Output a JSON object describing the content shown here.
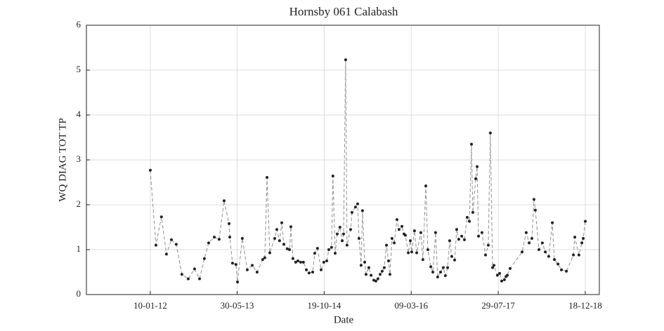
{
  "chart_data": {
    "type": "line",
    "title": "Hornsby 061 Calabash",
    "x_label": "Date",
    "y_label": "WQ DIAG TOT TP",
    "color": "#999999",
    "marker_color": "#222222",
    "line_style": "dashed",
    "grid": true,
    "xlim": [
      "2011-01-03",
      "2019-03-10"
    ],
    "xticks": [
      {
        "value": "2012-01-10",
        "label": "10-01-12"
      },
      {
        "value": "2013-05-30",
        "label": "30-05-13"
      },
      {
        "value": "2014-10-19",
        "label": "19-10-14"
      },
      {
        "value": "2016-03-09",
        "label": "09-03-16"
      },
      {
        "value": "2017-07-29",
        "label": "29-07-17"
      },
      {
        "value": "2018-12-18",
        "label": "18-12-18"
      }
    ],
    "ylim": [
      0,
      6
    ],
    "yticks": [
      0,
      1,
      2,
      3,
      4,
      5,
      6
    ],
    "x": [
      "2012-01-10",
      "2012-02-12",
      "2012-03-15",
      "2012-04-13",
      "2012-05-12",
      "2012-06-09",
      "2012-07-12",
      "2012-08-18",
      "2012-09-24",
      "2012-10-23",
      "2012-11-20",
      "2012-12-15",
      "2013-01-17",
      "2013-02-14",
      "2013-03-15",
      "2013-04-13",
      "2013-04-17",
      "2013-05-03",
      "2013-05-23",
      "2013-06-01",
      "2013-06-29",
      "2013-07-28",
      "2013-08-26",
      "2013-09-23",
      "2013-10-26",
      "2013-11-07",
      "2013-11-20",
      "2013-12-06",
      "2014-01-04",
      "2014-01-16",
      "2014-02-01",
      "2014-02-14",
      "2014-02-26",
      "2014-03-18",
      "2014-03-31",
      "2014-04-08",
      "2014-04-20",
      "2014-05-06",
      "2014-05-19",
      "2014-06-04",
      "2014-06-20",
      "2014-07-07",
      "2014-07-23",
      "2014-08-13",
      "2014-08-25",
      "2014-09-10",
      "2014-10-01",
      "2014-10-17",
      "2014-11-03",
      "2014-11-15",
      "2014-12-01",
      "2014-12-09",
      "2014-12-22",
      "2015-01-03",
      "2015-01-19",
      "2015-02-01",
      "2015-02-09",
      "2015-02-21",
      "2015-03-01",
      "2015-03-22",
      "2015-03-30",
      "2015-04-19",
      "2015-05-02",
      "2015-05-10",
      "2015-05-22",
      "2015-05-30",
      "2015-06-12",
      "2015-06-20",
      "2015-07-06",
      "2015-07-19",
      "2015-08-04",
      "2015-08-16",
      "2015-08-28",
      "2015-09-10",
      "2015-09-22",
      "2015-10-04",
      "2015-10-17",
      "2015-10-29",
      "2015-11-06",
      "2015-11-18",
      "2015-12-01",
      "2015-12-17",
      "2015-12-29",
      "2016-01-15",
      "2016-01-27",
      "2016-02-04",
      "2016-02-21",
      "2016-03-04",
      "2016-03-12",
      "2016-03-28",
      "2016-04-10",
      "2016-05-04",
      "2016-05-16",
      "2016-06-02",
      "2016-06-14",
      "2016-07-01",
      "2016-07-13",
      "2016-07-29",
      "2016-08-10",
      "2016-08-27",
      "2016-09-12",
      "2016-09-24",
      "2016-10-07",
      "2016-10-19",
      "2016-10-31",
      "2016-11-17",
      "2016-11-29",
      "2016-12-11",
      "2016-12-28",
      "2017-01-13",
      "2017-01-29",
      "2017-02-11",
      "2017-02-23",
      "2017-03-03",
      "2017-03-20",
      "2017-03-28",
      "2017-04-05",
      "2017-04-25",
      "2017-05-16",
      "2017-06-01",
      "2017-06-13",
      "2017-06-26",
      "2017-07-04",
      "2017-07-24",
      "2017-08-06",
      "2017-08-18",
      "2017-09-03",
      "2017-09-12",
      "2017-09-20",
      "2017-10-06",
      "2017-12-15",
      "2018-01-08",
      "2018-01-25",
      "2018-02-10",
      "2018-02-22",
      "2018-03-02",
      "2018-03-23",
      "2018-04-12",
      "2018-04-29",
      "2018-05-19",
      "2018-06-09",
      "2018-06-21",
      "2018-07-12",
      "2018-08-01",
      "2018-08-30",
      "2018-10-10",
      "2018-10-18",
      "2018-11-11",
      "2018-11-28",
      "2018-12-06",
      "2018-12-18"
    ],
    "values": [
      2.77,
      1.1,
      1.73,
      0.9,
      1.22,
      1.12,
      0.45,
      0.35,
      0.57,
      0.35,
      0.8,
      1.15,
      1.28,
      1.23,
      2.09,
      1.58,
      1.28,
      0.7,
      0.67,
      0.28,
      1.25,
      0.55,
      0.65,
      0.5,
      0.78,
      0.82,
      2.61,
      0.93,
      1.25,
      1.45,
      1.2,
      1.6,
      1.12,
      1.02,
      1.0,
      1.51,
      0.8,
      0.72,
      0.75,
      0.72,
      0.72,
      0.55,
      0.48,
      0.5,
      0.92,
      1.03,
      0.55,
      0.72,
      0.75,
      1.0,
      1.05,
      2.64,
      0.92,
      1.35,
      1.5,
      1.2,
      1.35,
      5.23,
      1.1,
      1.45,
      1.83,
      1.95,
      2.02,
      1.25,
      0.65,
      1.87,
      0.72,
      0.45,
      0.6,
      0.43,
      0.32,
      0.3,
      0.35,
      0.45,
      0.52,
      0.6,
      1.1,
      0.75,
      0.45,
      1.25,
      1.15,
      1.67,
      1.45,
      1.52,
      1.35,
      1.32,
      0.93,
      1.2,
      0.95,
      1.42,
      0.93,
      1.38,
      0.78,
      2.42,
      1.0,
      0.62,
      0.5,
      1.38,
      0.39,
      0.5,
      0.6,
      0.42,
      0.6,
      1.2,
      0.85,
      0.77,
      1.45,
      1.23,
      1.3,
      1.22,
      1.72,
      1.63,
      3.35,
      1.83,
      2.58,
      2.85,
      1.3,
      1.38,
      0.88,
      1.1,
      3.6,
      0.6,
      0.65,
      0.43,
      0.47,
      0.3,
      0.33,
      0.4,
      0.43,
      0.58,
      0.95,
      1.38,
      1.15,
      1.25,
      2.12,
      1.88,
      1.0,
      1.15,
      0.95,
      0.85,
      1.6,
      0.78,
      0.68,
      0.55,
      0.52,
      0.88,
      1.28,
      0.88,
      1.15,
      1.25,
      1.63
    ]
  }
}
